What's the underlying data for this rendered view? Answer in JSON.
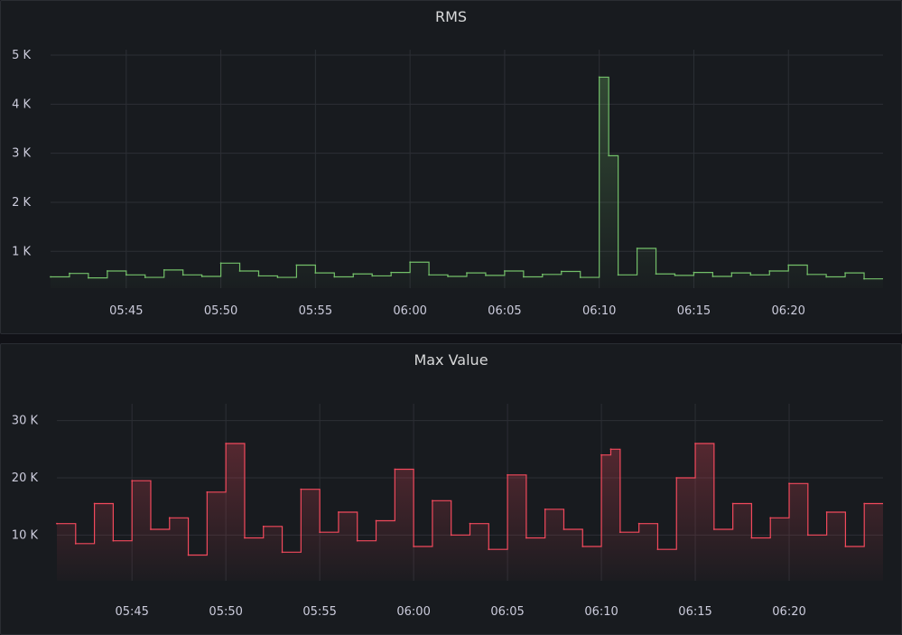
{
  "chart_data": [
    {
      "type": "line",
      "title": "RMS",
      "xlabel": "",
      "ylabel": "",
      "x_ticks": [
        "05:45",
        "05:50",
        "05:55",
        "06:00",
        "06:05",
        "06:10",
        "06:15",
        "06:20"
      ],
      "y_ticks": [
        "1 K",
        "2 K",
        "3 K",
        "4 K",
        "5 K"
      ],
      "y_tick_values": [
        1000,
        2000,
        3000,
        4000,
        5000
      ],
      "ylim": [
        250,
        5000
      ],
      "baseline": 250,
      "grid": true,
      "line_color": "#73bf69",
      "fill": "gradient",
      "series": [
        {
          "x": [
            "05:41",
            "05:42",
            "05:43",
            "05:44",
            "05:45",
            "05:46",
            "05:47",
            "05:48",
            "05:49",
            "05:50",
            "05:51",
            "05:52",
            "05:53",
            "05:54",
            "05:55",
            "05:56",
            "05:57",
            "05:58",
            "05:59",
            "06:00",
            "06:01",
            "06:02",
            "06:03",
            "06:04",
            "06:05",
            "06:06",
            "06:07",
            "06:08",
            "06:09",
            "06:10",
            "06:10:30",
            "06:11",
            "06:12",
            "06:13",
            "06:14",
            "06:15",
            "06:16",
            "06:17",
            "06:18",
            "06:19",
            "06:20",
            "06:21",
            "06:22",
            "06:23",
            "06:24"
          ],
          "values": [
            480,
            550,
            460,
            600,
            520,
            470,
            620,
            520,
            490,
            760,
            600,
            500,
            470,
            720,
            560,
            480,
            540,
            500,
            570,
            780,
            520,
            490,
            560,
            510,
            600,
            480,
            530,
            590,
            470,
            4550,
            2950,
            520,
            1060,
            540,
            510,
            570,
            490,
            560,
            520,
            600,
            720,
            530,
            480,
            560,
            440
          ]
        }
      ]
    },
    {
      "type": "line",
      "title": "Max Value",
      "xlabel": "",
      "ylabel": "",
      "x_ticks": [
        "05:45",
        "05:50",
        "05:55",
        "06:00",
        "06:05",
        "06:10",
        "06:15",
        "06:20"
      ],
      "y_ticks": [
        "10 K",
        "20 K",
        "30 K"
      ],
      "y_tick_values": [
        10000,
        20000,
        30000
      ],
      "ylim": [
        2000,
        32000
      ],
      "baseline": 2000,
      "grid": true,
      "line_color": "#f2495c",
      "fill": "gradient",
      "series": [
        {
          "x": [
            "05:41",
            "05:42",
            "05:43",
            "05:44",
            "05:45",
            "05:46",
            "05:47",
            "05:48",
            "05:49",
            "05:50",
            "05:51",
            "05:52",
            "05:53",
            "05:54",
            "05:55",
            "05:56",
            "05:57",
            "05:58",
            "05:59",
            "06:00",
            "06:01",
            "06:02",
            "06:03",
            "06:04",
            "06:05",
            "06:06",
            "06:07",
            "06:08",
            "06:09",
            "06:10",
            "06:10:30",
            "06:11",
            "06:12",
            "06:13",
            "06:14",
            "06:15",
            "06:16",
            "06:17",
            "06:18",
            "06:19",
            "06:20",
            "06:21",
            "06:22",
            "06:23",
            "06:24"
          ],
          "values": [
            12000,
            8500,
            15500,
            9000,
            19500,
            11000,
            13000,
            6500,
            17500,
            26000,
            9500,
            11500,
            7000,
            18000,
            10500,
            14000,
            9000,
            12500,
            21500,
            8000,
            16000,
            10000,
            12000,
            7500,
            20500,
            9500,
            14500,
            11000,
            8000,
            24000,
            25000,
            10500,
            12000,
            7500,
            20000,
            26000,
            11000,
            15500,
            9500,
            13000,
            19000,
            10000,
            14000,
            8000,
            15500
          ]
        }
      ]
    }
  ]
}
